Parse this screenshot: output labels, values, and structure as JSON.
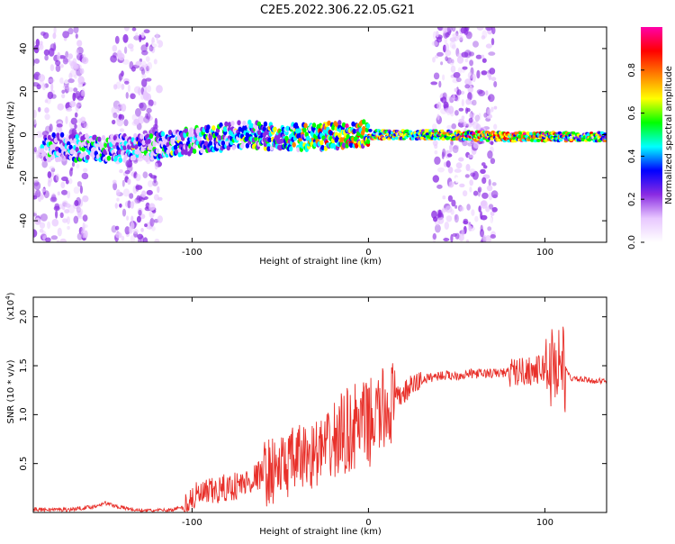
{
  "page": {
    "title": "C2E5.2022.306.22.05.G21"
  },
  "chart_data": [
    {
      "type": "heatmap",
      "xlabel": "Height of straight line (km)",
      "ylabel": "Frequency (Hz)",
      "xlim": [
        -190,
        135
      ],
      "ylim": [
        -50,
        50
      ],
      "xticks": [
        -100,
        0,
        100
      ],
      "yticks": [
        -40,
        -20,
        0,
        20,
        40
      ],
      "colorbar": {
        "label": "Normalized spectral amplitude",
        "range": [
          0,
          1
        ],
        "ticks": [
          "0.0",
          "0.2",
          "0.4",
          "0.6",
          "0.8"
        ],
        "colormap": [
          "#ffffff",
          "#e8c8ff",
          "#8a2be2",
          "#0000ff",
          "#00ffff",
          "#00ff00",
          "#ffff00",
          "#ff8000",
          "#ff0000",
          "#ff00aa"
        ]
      },
      "ridge": [
        {
          "x": -170,
          "y": -6,
          "a": 0.35
        },
        {
          "x": -150,
          "y": -7,
          "a": 0.35
        },
        {
          "x": -130,
          "y": -6,
          "a": 0.4
        },
        {
          "x": -110,
          "y": -4,
          "a": 0.4
        },
        {
          "x": -90,
          "y": -2,
          "a": 0.45
        },
        {
          "x": -70,
          "y": 0,
          "a": 0.5
        },
        {
          "x": -50,
          "y": -1,
          "a": 0.55
        },
        {
          "x": -30,
          "y": -1,
          "a": 0.6
        },
        {
          "x": -10,
          "y": 0,
          "a": 0.75
        },
        {
          "x": 10,
          "y": 0,
          "a": 0.7
        },
        {
          "x": 30,
          "y": 0,
          "a": 0.7
        },
        {
          "x": 80,
          "y": -1,
          "a": 0.85
        },
        {
          "x": 100,
          "y": -1,
          "a": 0.8
        },
        {
          "x": 120,
          "y": -1,
          "a": 0.65
        }
      ],
      "noise_bands": [
        {
          "x0": -190,
          "x1": -160
        },
        {
          "x0": -145,
          "x1": -118
        },
        {
          "x0": 37,
          "x1": 72
        }
      ]
    },
    {
      "type": "line",
      "xlabel": "Height of straight line (km)",
      "ylabel": "SNR (10 * v/v)",
      "ylabel_multiplier": "(x10",
      "ylabel_exponent": "4",
      "xlim": [
        -190,
        135
      ],
      "ylim": [
        0,
        2.2
      ],
      "xticks": [
        -100,
        0,
        100
      ],
      "yticks": [
        0.5,
        1.0,
        1.5,
        2.0
      ],
      "color": "#e8302a",
      "series": [
        {
          "x": [
            -190,
            -170,
            -155,
            -150,
            -140,
            -130,
            -115,
            -105,
            -100,
            -90,
            -80,
            -70,
            -60,
            -50,
            -40,
            -30,
            -25,
            -20,
            -15,
            -10,
            -5,
            0,
            5,
            10,
            15,
            20,
            25,
            30,
            35,
            40,
            50,
            60,
            70,
            80,
            90,
            95,
            100,
            105,
            108,
            110,
            115,
            125,
            135
          ],
          "y": [
            0.03,
            0.03,
            0.06,
            0.1,
            0.05,
            0.02,
            0.02,
            0.05,
            0.15,
            0.2,
            0.25,
            0.3,
            0.4,
            0.45,
            0.55,
            0.6,
            0.65,
            0.7,
            0.8,
            0.85,
            0.9,
            0.9,
            1.0,
            1.05,
            1.15,
            1.22,
            1.3,
            1.35,
            1.38,
            1.4,
            1.4,
            1.42,
            1.42,
            1.43,
            1.45,
            1.45,
            1.48,
            1.5,
            1.55,
            1.5,
            1.37,
            1.35,
            1.34
          ]
        }
      ],
      "noise_amplitude": [
        {
          "from": -190,
          "to": -105,
          "amp": 0.02
        },
        {
          "from": -105,
          "to": -60,
          "amp": 0.15
        },
        {
          "from": -60,
          "to": -20,
          "amp": 0.35
        },
        {
          "from": -20,
          "to": 15,
          "amp": 0.45
        },
        {
          "from": 15,
          "to": 30,
          "amp": 0.12
        },
        {
          "from": 30,
          "to": 80,
          "amp": 0.05
        },
        {
          "from": 80,
          "to": 100,
          "amp": 0.15
        },
        {
          "from": 100,
          "to": 112,
          "amp": 0.45
        },
        {
          "from": 112,
          "to": 135,
          "amp": 0.03
        }
      ]
    }
  ]
}
